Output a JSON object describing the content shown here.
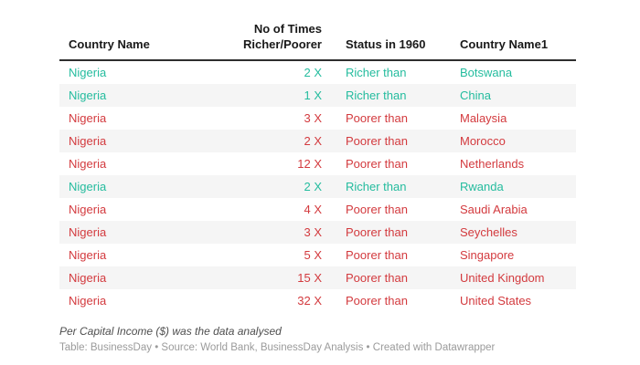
{
  "colors": {
    "richer": "#24bc9e",
    "poorer": "#d33a3e",
    "stripe": "#f5f5f5",
    "header_border": "#2e2e2e"
  },
  "chart_data": {
    "type": "table",
    "columns": [
      "Country Name",
      "No of Times Richer/Poorer",
      "Status in 1960",
      "Country Name1"
    ],
    "rows": [
      {
        "country": "Nigeria",
        "times": "2 X",
        "status": "Richer than",
        "compare": "Botswana",
        "sentiment": "richer"
      },
      {
        "country": "Nigeria",
        "times": "1 X",
        "status": "Richer than",
        "compare": "China",
        "sentiment": "richer"
      },
      {
        "country": "Nigeria",
        "times": "3 X",
        "status": "Poorer than",
        "compare": "Malaysia",
        "sentiment": "poorer"
      },
      {
        "country": "Nigeria",
        "times": "2 X",
        "status": "Poorer than",
        "compare": "Morocco",
        "sentiment": "poorer"
      },
      {
        "country": "Nigeria",
        "times": "12 X",
        "status": "Poorer than",
        "compare": "Netherlands",
        "sentiment": "poorer"
      },
      {
        "country": "Nigeria",
        "times": "2 X",
        "status": "Richer than",
        "compare": "Rwanda",
        "sentiment": "richer"
      },
      {
        "country": "Nigeria",
        "times": "4 X",
        "status": "Poorer than",
        "compare": "Saudi Arabia",
        "sentiment": "poorer"
      },
      {
        "country": "Nigeria",
        "times": "3 X",
        "status": "Poorer than",
        "compare": "Seychelles",
        "sentiment": "poorer"
      },
      {
        "country": "Nigeria",
        "times": "5 X",
        "status": "Poorer than",
        "compare": "Singapore",
        "sentiment": "poorer"
      },
      {
        "country": "Nigeria",
        "times": "15 X",
        "status": "Poorer than",
        "compare": "United Kingdom",
        "sentiment": "poorer"
      },
      {
        "country": "Nigeria",
        "times": "32 X",
        "status": "Poorer than",
        "compare": "United States",
        "sentiment": "poorer"
      }
    ]
  },
  "footer": {
    "note": "Per Capital Income ($) was the data analysed",
    "attribution": "Table: BusinessDay • Source: World Bank, BusinessDay Analysis • Created with Datawrapper"
  }
}
